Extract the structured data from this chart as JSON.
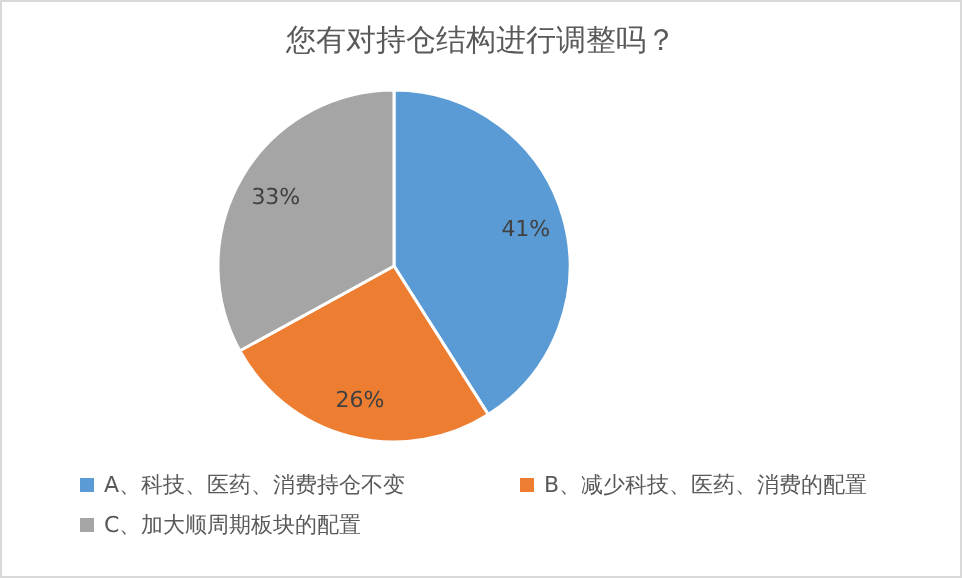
{
  "chart_data": {
    "type": "pie",
    "title": "您有对持仓结构进行调整吗？",
    "categories": [
      "A、科技、医药、消费持仓不变",
      "B、减少科技、医药、消费的配置",
      "C、加大顺周期板块的配置"
    ],
    "values": [
      41,
      26,
      33
    ],
    "value_labels": [
      "41%",
      "26%",
      "33%"
    ],
    "colors": [
      "#5b9bd5",
      "#ed7d31",
      "#a5a5a5"
    ],
    "legend": "bottom"
  }
}
